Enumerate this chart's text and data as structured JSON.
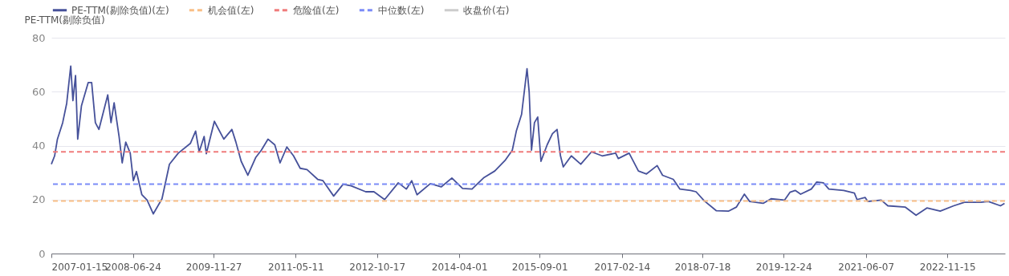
{
  "chart_data": {
    "type": "line",
    "ylabel": "PE-TTM(剔除负值)",
    "legend": "top",
    "grid": "y",
    "line_style": "solid",
    "ylim": [
      0,
      80
    ],
    "yticks": [
      0,
      20,
      40,
      60,
      80
    ],
    "xlim": [
      "2007-01-15",
      "2023-11-22"
    ],
    "xticks": [
      "2007-01-15",
      "2008-06-24",
      "2009-11-27",
      "2011-05-11",
      "2012-10-17",
      "2014-04-01",
      "2015-09-01",
      "2017-02-14",
      "2018-07-18",
      "2019-12-24",
      "2021-06-07",
      "2022-11-15"
    ],
    "series": [
      {
        "name": "PE-TTM(剔除负值)(左)",
        "color": "#46519a",
        "x": [
          "2007-01-15",
          "2007-02-05",
          "2007-02-23",
          "2007-03-29",
          "2007-04-24",
          "2007-05-20",
          "2007-06-03",
          "2007-06-20",
          "2007-07-04",
          "2007-07-28",
          "2007-09-10",
          "2007-10-02",
          "2007-10-26",
          "2007-11-18",
          "2008-01-14",
          "2008-02-04",
          "2008-02-24",
          "2008-03-27",
          "2008-04-16",
          "2008-05-09",
          "2008-06-07",
          "2008-06-27",
          "2008-07-17",
          "2008-08-21",
          "2008-09-24",
          "2008-11-03",
          "2008-12-29",
          "2009-02-15",
          "2009-04-13",
          "2009-06-30",
          "2009-08-03",
          "2009-08-26",
          "2009-09-27",
          "2009-10-11",
          "2009-12-02",
          "2010-02-01",
          "2010-03-25",
          "2010-04-20",
          "2010-05-24",
          "2010-07-06",
          "2010-08-27",
          "2010-10-01",
          "2010-11-13",
          "2010-12-27",
          "2011-01-30",
          "2011-03-15",
          "2011-04-27",
          "2011-06-09",
          "2011-07-23",
          "2011-09-30",
          "2011-11-03",
          "2012-01-11",
          "2012-03-12",
          "2012-05-03",
          "2012-08-05",
          "2012-09-27",
          "2012-12-05",
          "2013-03-03",
          "2013-04-24",
          "2013-05-29",
          "2013-07-02",
          "2013-09-26",
          "2013-12-05",
          "2014-02-12",
          "2014-04-22",
          "2014-06-22",
          "2014-09-08",
          "2014-11-16",
          "2015-01-24",
          "2015-03-09",
          "2015-04-04",
          "2015-05-08",
          "2015-06-12",
          "2015-06-26",
          "2015-07-11",
          "2015-07-30",
          "2015-08-20",
          "2015-09-10",
          "2015-10-20",
          "2015-11-23",
          "2015-12-23",
          "2016-01-14",
          "2016-02-01",
          "2016-03-24",
          "2016-05-24",
          "2016-08-01",
          "2016-10-09",
          "2017-01-04",
          "2017-01-21",
          "2017-04-01",
          "2017-05-31",
          "2017-07-22",
          "2017-09-29",
          "2017-11-03",
          "2018-01-11",
          "2018-02-23",
          "2018-05-03",
          "2018-06-07",
          "2018-07-29",
          "2018-10-15",
          "2019-01-02",
          "2019-02-22",
          "2019-04-15",
          "2019-05-19",
          "2019-08-14",
          "2019-10-04",
          "2019-12-30",
          "2020-02-03",
          "2020-03-08",
          "2020-04-12",
          "2020-06-20",
          "2020-07-25",
          "2020-09-06",
          "2020-10-11",
          "2021-01-15",
          "2021-03-25",
          "2021-04-11",
          "2021-06-02",
          "2021-06-19",
          "2021-09-14",
          "2021-10-27",
          "2022-02-17",
          "2022-04-27",
          "2022-07-06",
          "2022-09-30",
          "2022-12-26",
          "2023-03-05",
          "2023-06-17",
          "2023-08-07",
          "2023-10-24",
          "2023-11-19"
        ],
        "values": [
          33.1,
          36.2,
          42.4,
          48.5,
          55.7,
          69.5,
          56.7,
          66,
          42.4,
          54.7,
          63.4,
          63.4,
          48.5,
          46,
          58.8,
          48.5,
          55.9,
          43.4,
          33.6,
          41.3,
          37.2,
          27,
          30.4,
          21.8,
          19.8,
          14.7,
          20.3,
          33.1,
          37.2,
          40.8,
          45.4,
          37.7,
          43.4,
          37,
          49,
          42.4,
          46,
          41.3,
          34.2,
          29,
          35.7,
          38.3,
          42.4,
          40.3,
          33.6,
          39.5,
          36.2,
          31.6,
          31.1,
          27.5,
          27,
          21.3,
          25.7,
          25.1,
          22.9,
          22.9,
          20,
          26.2,
          23.9,
          27,
          21.8,
          25.9,
          24.7,
          28,
          24.1,
          23.9,
          28.2,
          30.6,
          34.7,
          38.3,
          45.4,
          51.6,
          68.5,
          59.8,
          38.3,
          48.5,
          50.6,
          34.2,
          40.3,
          44.4,
          46,
          36.2,
          32.1,
          36.2,
          33.1,
          37.7,
          36.2,
          37.2,
          35.2,
          37.2,
          30.6,
          29.5,
          32.6,
          29,
          27.5,
          23.9,
          23.4,
          22.9,
          19.6,
          15.9,
          15.7,
          17.2,
          22,
          19.3,
          18.6,
          20.3,
          19.8,
          22.7,
          23.4,
          22,
          23.9,
          26.5,
          26.2,
          23.9,
          23.4,
          22.4,
          20,
          20.8,
          19.3,
          19.8,
          17.7,
          17.2,
          14.2,
          16.9,
          15.7,
          17.7,
          19,
          19,
          19.3,
          17.7,
          18.6
        ]
      },
      {
        "name": "收盘价(右)",
        "color": "#cccccc"
      }
    ],
    "ref_lines": [
      {
        "axis": "y",
        "value": 19.5,
        "label": "机会值(左)",
        "color": "#f9bf86",
        "line_style": "dashed"
      },
      {
        "axis": "y",
        "value": 37.7,
        "label": "危险值(左)",
        "color": "#f07c7c",
        "line_style": "dashed"
      },
      {
        "axis": "y",
        "value": 25.7,
        "label": "中位数(左)",
        "color": "#7b8bf7",
        "line_style": "dashed"
      }
    ]
  }
}
